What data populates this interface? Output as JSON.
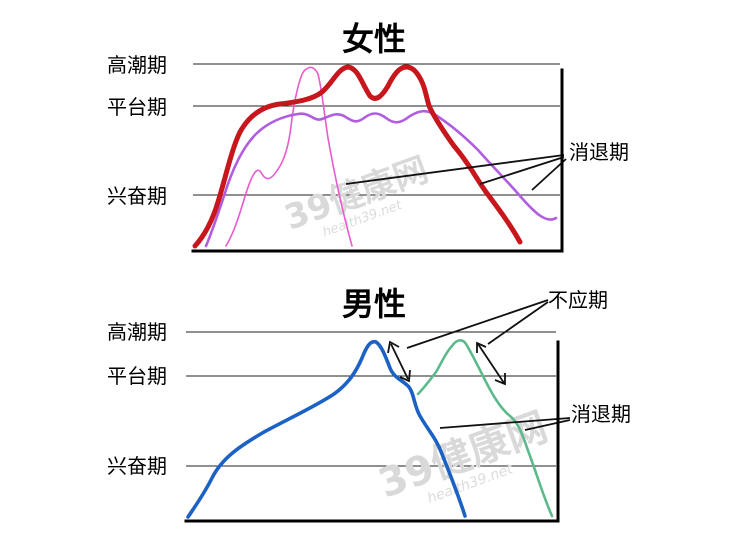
{
  "female_panel": {
    "title": "女性",
    "levels": {
      "orgasm": "高潮期",
      "plateau": "平台期",
      "excitement": "兴奋期"
    },
    "resolution_label": "消退期",
    "curves": [
      {
        "name": "female-curve-red",
        "color": "#c8161d"
      },
      {
        "name": "female-curve-purple",
        "color": "#b05de0"
      },
      {
        "name": "female-curve-pink",
        "color": "#e95ad0"
      }
    ]
  },
  "male_panel": {
    "title": "男性",
    "levels": {
      "orgasm": "高潮期",
      "plateau": "平台期",
      "excitement": "兴奋期"
    },
    "refractory_label": "不应期",
    "resolution_label": "消退期",
    "curves": [
      {
        "name": "male-curve-blue",
        "color": "#1b62c4"
      },
      {
        "name": "male-curve-green",
        "color": "#5cb98c"
      }
    ]
  },
  "watermark": {
    "brand": "39健康网",
    "sub": "health39.net"
  }
}
